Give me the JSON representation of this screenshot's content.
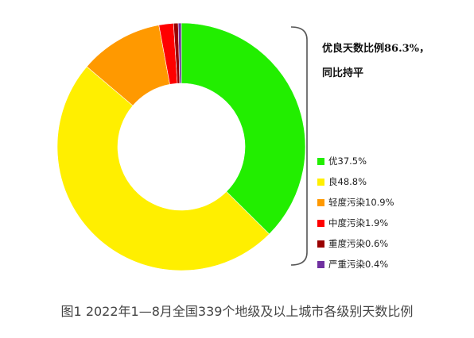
{
  "chart_data": {
    "type": "pie",
    "donut": true,
    "start_angle_deg": 0,
    "direction": "clockwise",
    "title": "",
    "slices": [
      {
        "name": "优",
        "label": "优37.5%",
        "value": 37.5,
        "color": "#22ee00"
      },
      {
        "name": "良",
        "label": "良48.8%",
        "value": 48.8,
        "color": "#ffef00"
      },
      {
        "name": "轻度污染",
        "label": "轻度污染10.9%",
        "value": 10.9,
        "color": "#ff9900"
      },
      {
        "name": "中度污染",
        "label": "中度污染1.9%",
        "value": 1.9,
        "color": "#ff0000"
      },
      {
        "name": "重度污染",
        "label": "重度污染0.6%",
        "value": 0.6,
        "color": "#990000"
      },
      {
        "name": "严重污染",
        "label": "严重污染0.4%",
        "value": 0.4,
        "color": "#7030a0"
      }
    ],
    "annotation": {
      "line1": "优良天数比例86.3%，",
      "line2": "同比持平",
      "brackets_series": [
        "优",
        "良"
      ]
    },
    "legend_position": "right"
  },
  "caption": "图1 2022年1—8月全国339个地级及以上城市各级别天数比例"
}
